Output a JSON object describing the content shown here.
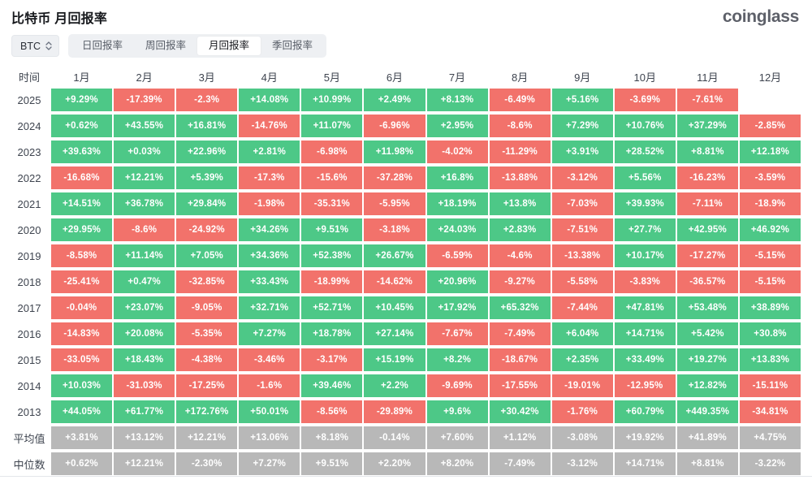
{
  "colors": {
    "positive": "#4dc887",
    "negative": "#f2726b",
    "summary": "#b8b8b8"
  },
  "header": {
    "title": "比特币 月回报率",
    "logo": "coinglass"
  },
  "controls": {
    "symbol_select": {
      "value": "BTC"
    },
    "tabs": [
      {
        "label": "日回报率",
        "active": false
      },
      {
        "label": "周回报率",
        "active": false
      },
      {
        "label": "月回报率",
        "active": true
      },
      {
        "label": "季回报率",
        "active": false
      }
    ]
  },
  "table": {
    "time_header": "时间",
    "month_headers": [
      "1月",
      "2月",
      "3月",
      "4月",
      "5月",
      "6月",
      "7月",
      "8月",
      "9月",
      "10月",
      "11月",
      "12月"
    ],
    "rows": [
      {
        "label": "2025",
        "type": "year",
        "values": [
          "+9.29%",
          "-17.39%",
          "-2.3%",
          "+14.08%",
          "+10.99%",
          "+2.49%",
          "+8.13%",
          "-6.49%",
          "+5.16%",
          "-3.69%",
          "-7.61%",
          ""
        ]
      },
      {
        "label": "2024",
        "type": "year",
        "values": [
          "+0.62%",
          "+43.55%",
          "+16.81%",
          "-14.76%",
          "+11.07%",
          "-6.96%",
          "+2.95%",
          "-8.6%",
          "+7.29%",
          "+10.76%",
          "+37.29%",
          "-2.85%"
        ]
      },
      {
        "label": "2023",
        "type": "year",
        "values": [
          "+39.63%",
          "+0.03%",
          "+22.96%",
          "+2.81%",
          "-6.98%",
          "+11.98%",
          "-4.02%",
          "-11.29%",
          "+3.91%",
          "+28.52%",
          "+8.81%",
          "+12.18%"
        ]
      },
      {
        "label": "2022",
        "type": "year",
        "values": [
          "-16.68%",
          "+12.21%",
          "+5.39%",
          "-17.3%",
          "-15.6%",
          "-37.28%",
          "+16.8%",
          "-13.88%",
          "-3.12%",
          "+5.56%",
          "-16.23%",
          "-3.59%"
        ]
      },
      {
        "label": "2021",
        "type": "year",
        "values": [
          "+14.51%",
          "+36.78%",
          "+29.84%",
          "-1.98%",
          "-35.31%",
          "-5.95%",
          "+18.19%",
          "+13.8%",
          "-7.03%",
          "+39.93%",
          "-7.11%",
          "-18.9%"
        ]
      },
      {
        "label": "2020",
        "type": "year",
        "values": [
          "+29.95%",
          "-8.6%",
          "-24.92%",
          "+34.26%",
          "+9.51%",
          "-3.18%",
          "+24.03%",
          "+2.83%",
          "-7.51%",
          "+27.7%",
          "+42.95%",
          "+46.92%"
        ]
      },
      {
        "label": "2019",
        "type": "year",
        "values": [
          "-8.58%",
          "+11.14%",
          "+7.05%",
          "+34.36%",
          "+52.38%",
          "+26.67%",
          "-6.59%",
          "-4.6%",
          "-13.38%",
          "+10.17%",
          "-17.27%",
          "-5.15%"
        ]
      },
      {
        "label": "2018",
        "type": "year",
        "values": [
          "-25.41%",
          "+0.47%",
          "-32.85%",
          "+33.43%",
          "-18.99%",
          "-14.62%",
          "+20.96%",
          "-9.27%",
          "-5.58%",
          "-3.83%",
          "-36.57%",
          "-5.15%"
        ]
      },
      {
        "label": "2017",
        "type": "year",
        "values": [
          "-0.04%",
          "+23.07%",
          "-9.05%",
          "+32.71%",
          "+52.71%",
          "+10.45%",
          "+17.92%",
          "+65.32%",
          "-7.44%",
          "+47.81%",
          "+53.48%",
          "+38.89%"
        ]
      },
      {
        "label": "2016",
        "type": "year",
        "values": [
          "-14.83%",
          "+20.08%",
          "-5.35%",
          "+7.27%",
          "+18.78%",
          "+27.14%",
          "-7.67%",
          "-7.49%",
          "+6.04%",
          "+14.71%",
          "+5.42%",
          "+30.8%"
        ]
      },
      {
        "label": "2015",
        "type": "year",
        "values": [
          "-33.05%",
          "+18.43%",
          "-4.38%",
          "-3.46%",
          "-3.17%",
          "+15.19%",
          "+8.2%",
          "-18.67%",
          "+2.35%",
          "+33.49%",
          "+19.27%",
          "+13.83%"
        ]
      },
      {
        "label": "2014",
        "type": "year",
        "values": [
          "+10.03%",
          "-31.03%",
          "-17.25%",
          "-1.6%",
          "+39.46%",
          "+2.2%",
          "-9.69%",
          "-17.55%",
          "-19.01%",
          "-12.95%",
          "+12.82%",
          "-15.11%"
        ]
      },
      {
        "label": "2013",
        "type": "year",
        "values": [
          "+44.05%",
          "+61.77%",
          "+172.76%",
          "+50.01%",
          "-8.56%",
          "-29.89%",
          "+9.6%",
          "+30.42%",
          "-1.76%",
          "+60.79%",
          "+449.35%",
          "-34.81%"
        ]
      },
      {
        "label": "平均值",
        "type": "summary",
        "values": [
          "+3.81%",
          "+13.12%",
          "+12.21%",
          "+13.06%",
          "+8.18%",
          "-0.14%",
          "+7.60%",
          "+1.12%",
          "-3.08%",
          "+19.92%",
          "+41.89%",
          "+4.75%"
        ]
      },
      {
        "label": "中位数",
        "type": "summary",
        "values": [
          "+0.62%",
          "+12.21%",
          "-2.30%",
          "+7.27%",
          "+9.51%",
          "+2.20%",
          "+8.20%",
          "-7.49%",
          "-3.12%",
          "+14.71%",
          "+8.81%",
          "-3.22%"
        ]
      }
    ]
  }
}
